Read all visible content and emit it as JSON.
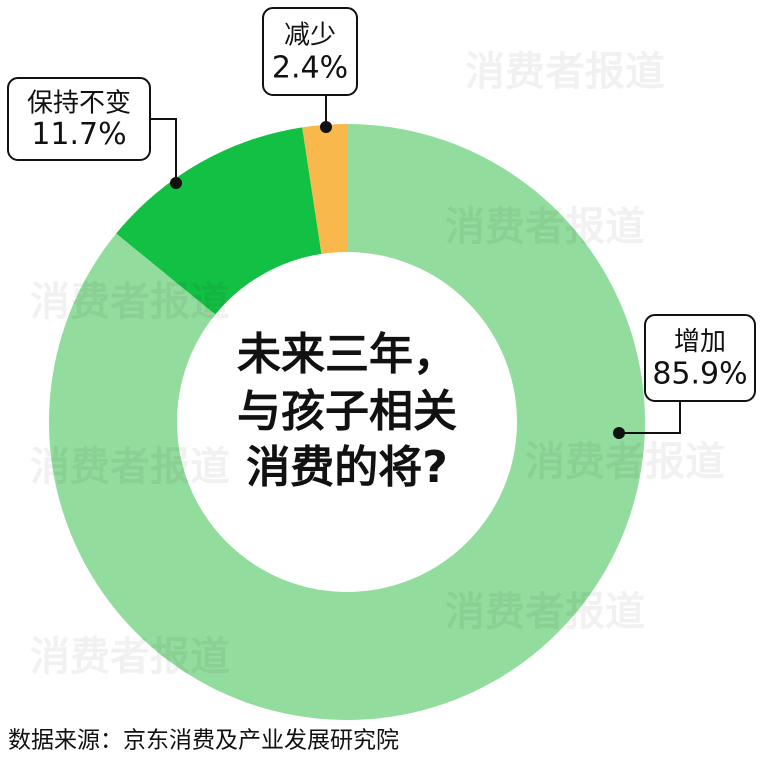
{
  "chart_data": {
    "type": "donut",
    "center_text": [
      "未来三年，",
      "与孩子相关",
      "消费的将?"
    ],
    "categories": [
      "增加",
      "保持不变",
      "减少"
    ],
    "values": [
      85.9,
      11.7,
      2.4
    ],
    "value_labels": [
      "85.9%",
      "11.7%",
      "2.4%"
    ],
    "colors": [
      "#92dd9d",
      "#12c043",
      "#f8b84b"
    ],
    "source": "数据来源：京东消费及产业发展研究院",
    "watermark": "消费者报道"
  }
}
